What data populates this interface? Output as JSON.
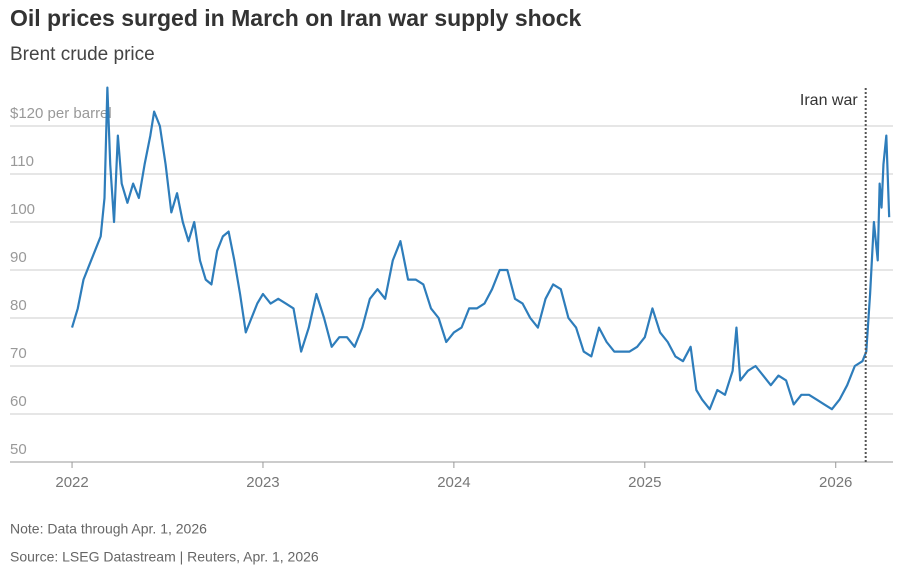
{
  "chart_data": {
    "type": "line",
    "title": "Oil prices surged in March on Iran war supply shock",
    "subtitle": "Brent crude price",
    "note": "Note: Data through Apr. 1, 2026",
    "source": "Source: LSEG Datastream | Reuters, Apr. 1, 2026",
    "color": "#2e7dbb",
    "x": [
      2022.0,
      2022.03,
      2022.06,
      2022.09,
      2022.12,
      2022.15,
      2022.17,
      2022.185,
      2022.2,
      2022.22,
      2022.24,
      2022.26,
      2022.29,
      2022.32,
      2022.35,
      2022.38,
      2022.41,
      2022.43,
      2022.46,
      2022.49,
      2022.52,
      2022.55,
      2022.58,
      2022.61,
      2022.64,
      2022.67,
      2022.7,
      2022.73,
      2022.76,
      2022.79,
      2022.82,
      2022.85,
      2022.88,
      2022.91,
      2022.94,
      2022.97,
      2023.0,
      2023.04,
      2023.08,
      2023.12,
      2023.16,
      2023.2,
      2023.24,
      2023.28,
      2023.32,
      2023.36,
      2023.4,
      2023.44,
      2023.48,
      2023.52,
      2023.56,
      2023.6,
      2023.64,
      2023.68,
      2023.72,
      2023.76,
      2023.8,
      2023.84,
      2023.88,
      2023.92,
      2023.96,
      2024.0,
      2024.04,
      2024.08,
      2024.12,
      2024.16,
      2024.2,
      2024.24,
      2024.28,
      2024.32,
      2024.36,
      2024.4,
      2024.44,
      2024.48,
      2024.52,
      2024.56,
      2024.6,
      2024.64,
      2024.68,
      2024.72,
      2024.76,
      2024.8,
      2024.84,
      2024.88,
      2024.92,
      2024.96,
      2025.0,
      2025.04,
      2025.08,
      2025.12,
      2025.16,
      2025.2,
      2025.24,
      2025.27,
      2025.3,
      2025.34,
      2025.38,
      2025.42,
      2025.46,
      2025.48,
      2025.5,
      2025.54,
      2025.58,
      2025.62,
      2025.66,
      2025.7,
      2025.74,
      2025.78,
      2025.82,
      2025.86,
      2025.9,
      2025.94,
      2025.98,
      2026.02,
      2026.06,
      2026.1,
      2026.14,
      2026.16,
      2026.18,
      2026.2,
      2026.22,
      2026.23,
      2026.24,
      2026.25,
      2026.265,
      2026.28
    ],
    "values": [
      78,
      82,
      88,
      91,
      94,
      97,
      105,
      128,
      112,
      100,
      118,
      108,
      104,
      108,
      105,
      112,
      118,
      123,
      120,
      112,
      102,
      106,
      100,
      96,
      100,
      92,
      88,
      87,
      94,
      97,
      98,
      92,
      85,
      77,
      80,
      83,
      85,
      83,
      84,
      83,
      82,
      73,
      78,
      85,
      80,
      74,
      76,
      76,
      74,
      78,
      84,
      86,
      84,
      92,
      96,
      88,
      88,
      87,
      82,
      80,
      75,
      77,
      78,
      82,
      82,
      83,
      86,
      90,
      90,
      84,
      83,
      80,
      78,
      84,
      87,
      86,
      80,
      78,
      73,
      72,
      78,
      75,
      73,
      73,
      73,
      74,
      76,
      82,
      77,
      75,
      72,
      71,
      74,
      65,
      63,
      61,
      65,
      64,
      69,
      78,
      67,
      69,
      70,
      68,
      66,
      68,
      67,
      62,
      64,
      64,
      63,
      62,
      61,
      63,
      66,
      70,
      71,
      73,
      85,
      100,
      92,
      108,
      103,
      112,
      118,
      101
    ],
    "xlim": [
      2021.675,
      2026.3
    ],
    "xticks": [
      2022,
      2023,
      2024,
      2025,
      2026
    ],
    "ylim": [
      50,
      128
    ],
    "yticks": [
      50,
      60,
      70,
      80,
      90,
      100,
      110,
      {
        "value": 120,
        "label": "$120 per barrel"
      }
    ],
    "grid": true,
    "annotations": [
      {
        "x": 2026.157,
        "label": "Iran war"
      }
    ]
  }
}
